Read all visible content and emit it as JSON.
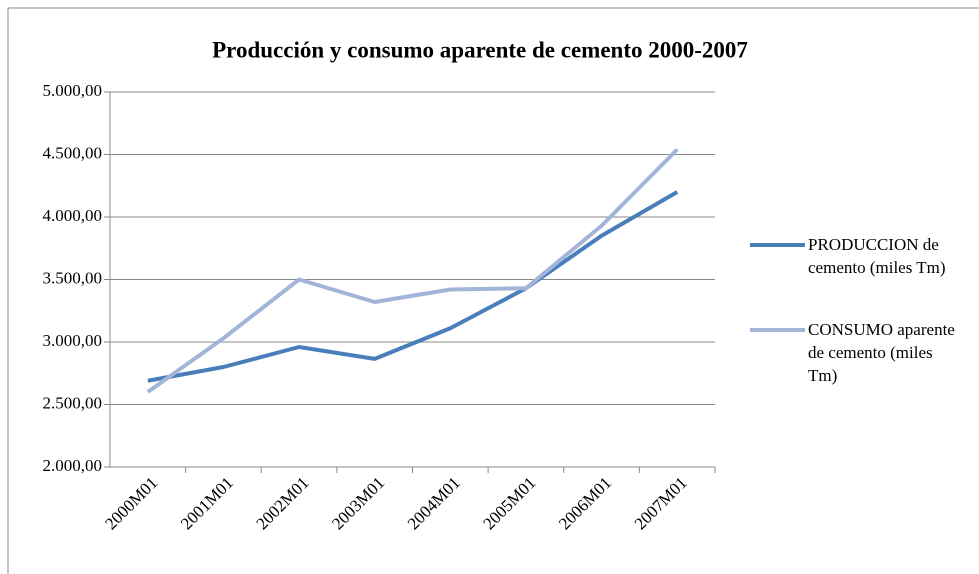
{
  "chart_data": {
    "type": "line",
    "title": "Producción y consumo aparente de cemento 2000-2007",
    "categories": [
      "2000M01",
      "2001M01",
      "2002M01",
      "2003M01",
      "2004M01",
      "2005M01",
      "2006M01",
      "2007M01"
    ],
    "series": [
      {
        "name": "PRODUCCION de cemento (miles Tm)",
        "color": "#4a7ebb",
        "values": [
          2690,
          2800,
          2960,
          2865,
          3110,
          3430,
          3850,
          4200
        ]
      },
      {
        "name": "CONSUMO aparente de cemento (miles Tm)",
        "color": "#a2b5d9",
        "values": [
          2600,
          3030,
          3500,
          3320,
          3420,
          3430,
          3930,
          4540
        ]
      }
    ],
    "ylim": [
      2000,
      5000
    ],
    "yticks": [
      {
        "value": 2000,
        "label": "2.000,00"
      },
      {
        "value": 2500,
        "label": "2.500,00"
      },
      {
        "value": 3000,
        "label": "3.000,00"
      },
      {
        "value": 3500,
        "label": "3.500,00"
      },
      {
        "value": 4000,
        "label": "4.000,00"
      },
      {
        "value": 4500,
        "label": "4.500,00"
      },
      {
        "value": 5000,
        "label": "5.000,00"
      }
    ],
    "grid": true,
    "legend": "right"
  }
}
